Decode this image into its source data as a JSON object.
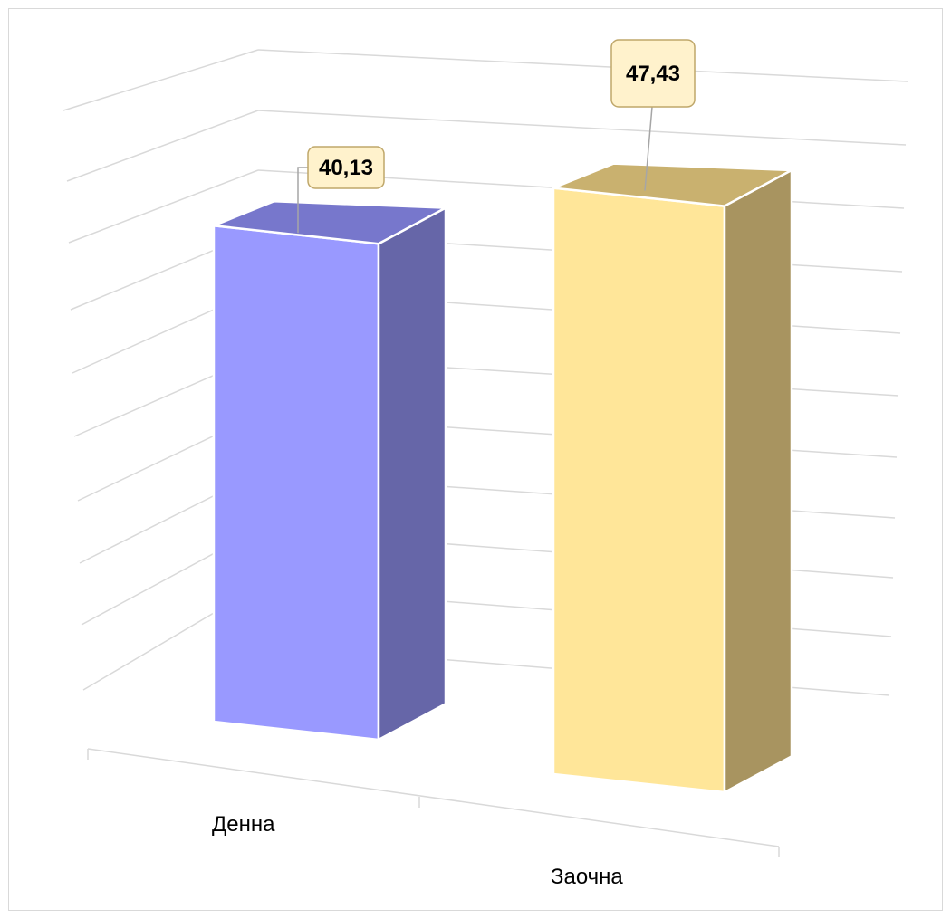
{
  "chart_data": {
    "type": "bar",
    "style": "3d-column",
    "categories": [
      "Денна",
      "Заочна"
    ],
    "values": [
      40.13,
      47.43
    ],
    "value_labels": [
      "40,13",
      "47,43"
    ],
    "title": "",
    "xlabel": "",
    "ylabel": "",
    "ylim": [
      0,
      60
    ],
    "grid": true,
    "legend": "none",
    "colors": {
      "Денна": {
        "front": "#9999ff",
        "top": "#7777cc",
        "side": "#6666a8"
      },
      "Заочна": {
        "front": "#ffe699",
        "top": "#c9b16f",
        "side": "#a89460"
      },
      "label_fill": "#fff2cc",
      "label_border": "#bfa76a",
      "gridline": "#d9d9d9"
    }
  }
}
